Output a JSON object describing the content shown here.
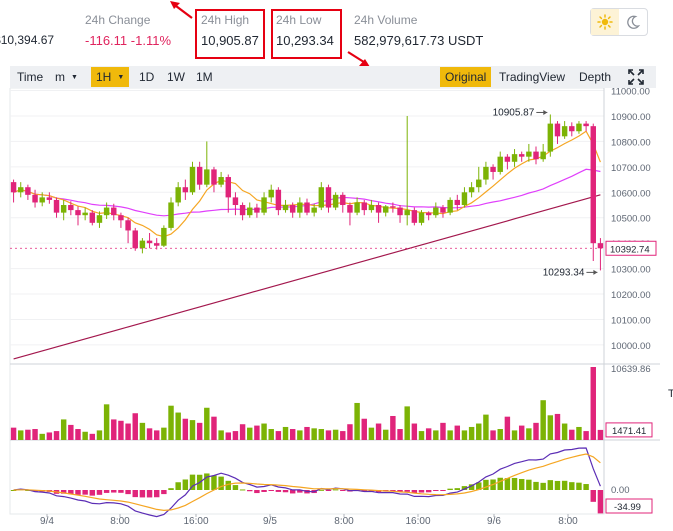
{
  "stats": {
    "last_price": "$10,394.67",
    "change_label": "24h Change",
    "change_value": "-116.11",
    "change_percent": "-1.11%",
    "high_label": "24h High",
    "high_value": "10,905.87",
    "low_label": "24h Low",
    "low_value": "10,293.34",
    "volume_label": "24h Volume",
    "volume_value": "582,979,617.73 USDT"
  },
  "theme": {
    "light_icon": "sun-icon",
    "dark_icon": "moon-icon",
    "active": "light"
  },
  "toolbar": {
    "left": [
      {
        "id": "time",
        "label": "Time"
      },
      {
        "id": "minutes",
        "label": "m",
        "dropdown": true
      },
      {
        "id": "1h",
        "label": "1H",
        "dropdown": true,
        "active": true
      },
      {
        "id": "1d",
        "label": "1D"
      },
      {
        "id": "1w",
        "label": "1W"
      },
      {
        "id": "1m",
        "label": "1M"
      }
    ],
    "right": [
      {
        "id": "original",
        "label": "Original",
        "active": true
      },
      {
        "id": "tradingview",
        "label": "TradingView"
      },
      {
        "id": "depth",
        "label": "Depth"
      }
    ],
    "fullscreen_icon": "expand-icon"
  },
  "chart_data": {
    "type": "candlestick",
    "price_axis": {
      "ticks": [
        "11000.00",
        "10900.00",
        "10800.00",
        "10700.00",
        "10600.00",
        "10500.00",
        "10400.00",
        "10300.00",
        "10200.00",
        "10100.00",
        "10000.00"
      ],
      "range": [
        9925,
        11010
      ]
    },
    "current_price_label": "10392.74",
    "high_annotation": "10905.87",
    "low_annotation": "10293.34",
    "volume_axis": {
      "max_label": "10639.86",
      "current_label": "1471.41",
      "range": [
        0,
        10640
      ]
    },
    "macd_axis": {
      "zero_label": "0.00",
      "current_label": "-34.99"
    },
    "time_axis": [
      "9/4",
      "8:00",
      "16:00",
      "9/5",
      "8:00",
      "16:00",
      "9/6",
      "8:00"
    ],
    "colors": {
      "up": "#7cb305",
      "down": "#e0247a",
      "ma_short": "#f5a623",
      "ma_mid": "#e040fb",
      "ma_long": "#a3174d",
      "macd_line": "#5b2db5"
    },
    "candles": [
      [
        10640,
        10600,
        10650,
        10560
      ],
      [
        10600,
        10620,
        10640,
        10580
      ],
      [
        10620,
        10590,
        10630,
        10570
      ],
      [
        10590,
        10560,
        10610,
        10540
      ],
      [
        10560,
        10580,
        10600,
        10545
      ],
      [
        10580,
        10570,
        10600,
        10555
      ],
      [
        10570,
        10520,
        10580,
        10500
      ],
      [
        10520,
        10550,
        10570,
        10490
      ],
      [
        10550,
        10530,
        10565,
        10510
      ],
      [
        10530,
        10510,
        10545,
        10470
      ],
      [
        10510,
        10520,
        10540,
        10490
      ],
      [
        10520,
        10480,
        10530,
        10470
      ],
      [
        10480,
        10510,
        10525,
        10460
      ],
      [
        10510,
        10540,
        10560,
        10495
      ],
      [
        10540,
        10510,
        10555,
        10490
      ],
      [
        10510,
        10490,
        10520,
        10460
      ],
      [
        10490,
        10450,
        10500,
        10400
      ],
      [
        10450,
        10380,
        10460,
        10370
      ],
      [
        10380,
        10410,
        10420,
        10360
      ],
      [
        10410,
        10400,
        10440,
        10380
      ],
      [
        10400,
        10390,
        10420,
        10375
      ],
      [
        10390,
        10460,
        10470,
        10385
      ],
      [
        10460,
        10560,
        10580,
        10450
      ],
      [
        10560,
        10620,
        10640,
        10545
      ],
      [
        10620,
        10600,
        10650,
        10570
      ],
      [
        10600,
        10700,
        10720,
        10590
      ],
      [
        10700,
        10630,
        10720,
        10610
      ],
      [
        10630,
        10690,
        10800,
        10620
      ],
      [
        10690,
        10630,
        10700,
        10600
      ],
      [
        10630,
        10660,
        10680,
        10620
      ],
      [
        10660,
        10580,
        10670,
        10520
      ],
      [
        10580,
        10550,
        10600,
        10510
      ],
      [
        10550,
        10510,
        10560,
        10490
      ],
      [
        10510,
        10540,
        10560,
        10500
      ],
      [
        10540,
        10520,
        10555,
        10500
      ],
      [
        10520,
        10580,
        10600,
        10510
      ],
      [
        10580,
        10610,
        10630,
        10560
      ],
      [
        10610,
        10530,
        10620,
        10510
      ],
      [
        10530,
        10550,
        10570,
        10520
      ],
      [
        10550,
        10520,
        10560,
        10500
      ],
      [
        10520,
        10560,
        10580,
        10500
      ],
      [
        10560,
        10520,
        10575,
        10510
      ],
      [
        10520,
        10540,
        10555,
        10505
      ],
      [
        10540,
        10620,
        10640,
        10530
      ],
      [
        10620,
        10540,
        10630,
        10520
      ],
      [
        10540,
        10590,
        10600,
        10530
      ],
      [
        10590,
        10550,
        10600,
        10520
      ],
      [
        10550,
        10520,
        10560,
        10470
      ],
      [
        10520,
        10560,
        10580,
        10510
      ],
      [
        10560,
        10530,
        10570,
        10510
      ],
      [
        10530,
        10550,
        10570,
        10520
      ],
      [
        10550,
        10520,
        10560,
        10480
      ],
      [
        10520,
        10545,
        10550,
        10505
      ],
      [
        10545,
        10540,
        10560,
        10520
      ],
      [
        10540,
        10510,
        10550,
        10480
      ],
      [
        10510,
        10530,
        10900,
        10470
      ],
      [
        10530,
        10480,
        10540,
        10470
      ],
      [
        10480,
        10520,
        10530,
        10470
      ],
      [
        10520,
        10510,
        10525,
        10490
      ],
      [
        10510,
        10540,
        10560,
        10500
      ],
      [
        10540,
        10520,
        10550,
        10500
      ],
      [
        10520,
        10570,
        10580,
        10510
      ],
      [
        10570,
        10550,
        10590,
        10530
      ],
      [
        10550,
        10600,
        10620,
        10540
      ],
      [
        10600,
        10620,
        10640,
        10580
      ],
      [
        10620,
        10650,
        10700,
        10600
      ],
      [
        10650,
        10700,
        10720,
        10630
      ],
      [
        10700,
        10680,
        10710,
        10650
      ],
      [
        10680,
        10740,
        10760,
        10670
      ],
      [
        10740,
        10720,
        10750,
        10690
      ],
      [
        10720,
        10750,
        10770,
        10700
      ],
      [
        10750,
        10740,
        10760,
        10720
      ],
      [
        10740,
        10760,
        10790,
        10720
      ],
      [
        10760,
        10730,
        10780,
        10710
      ],
      [
        10730,
        10760,
        10790,
        10720
      ],
      [
        10760,
        10870,
        10906,
        10740
      ],
      [
        10870,
        10820,
        10880,
        10790
      ],
      [
        10820,
        10860,
        10880,
        10810
      ],
      [
        10860,
        10840,
        10875,
        10820
      ],
      [
        10840,
        10870,
        10880,
        10830
      ],
      [
        10870,
        10860,
        10880,
        10840
      ],
      [
        10860,
        10400,
        10870,
        10330
      ],
      [
        10400,
        10380,
        10420,
        10293
      ]
    ],
    "volumes": [
      1800,
      1400,
      1500,
      1600,
      900,
      1100,
      1300,
      3000,
      2200,
      1600,
      1200,
      900,
      1400,
      5200,
      3000,
      2800,
      2400,
      3900,
      2500,
      1700,
      1400,
      1800,
      5000,
      4000,
      3100,
      2900,
      2500,
      4700,
      3400,
      1400,
      1100,
      1300,
      2300,
      1800,
      2100,
      2400,
      1600,
      1300,
      1900,
      1600,
      1400,
      1900,
      1700,
      1600,
      1400,
      1500,
      1300,
      2300,
      5400,
      3100,
      1800,
      2400,
      1500,
      3500,
      1600,
      4900,
      2400,
      1300,
      1700,
      1400,
      2500,
      1400,
      2100,
      1400,
      1900,
      2400,
      3700,
      1400,
      1600,
      3400,
      1400,
      2100,
      1700,
      2500,
      5800,
      3600,
      3800,
      2400,
      1500,
      1900,
      1300,
      10640,
      1471
    ]
  }
}
